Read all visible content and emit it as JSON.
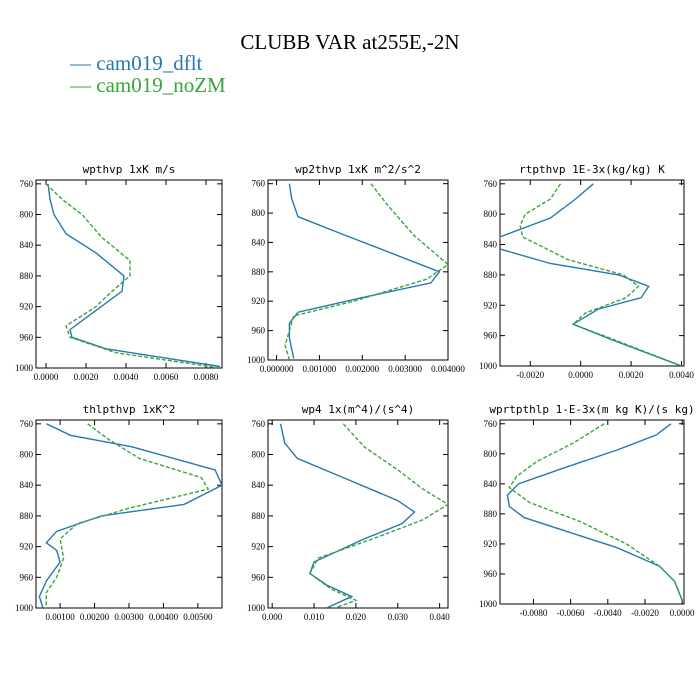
{
  "title": "CLUBB VAR at255E,-2N",
  "colors": {
    "dflt": "#2778b0",
    "noZM": "#3aa53a"
  },
  "legend": [
    {
      "name": "cam019_dflt",
      "color": "#2778b0",
      "dash": "solid"
    },
    {
      "name": "cam019_noZM",
      "color": "#3aa53a",
      "dash": "dashed"
    }
  ],
  "chart_data": [
    {
      "type": "line",
      "title": "wpthvp  1xK m/s",
      "xlim": [
        -0.0005,
        0.0088
      ],
      "xticks": [
        "0.0000",
        "0.0020",
        "0.0040",
        "0.0060",
        "0.0080"
      ],
      "xtick_values": [
        0.0,
        0.002,
        0.004,
        0.006,
        0.008
      ],
      "ylim": [
        1000,
        755
      ],
      "yticks": [
        "760",
        "800",
        "840",
        "880",
        "920",
        "960",
        "1000"
      ],
      "ytick_values": [
        760,
        800,
        840,
        880,
        920,
        960,
        1000
      ],
      "series": [
        {
          "name": "cam019_dflt",
          "style": "solid",
          "x": [
            0.0001,
            0.0002,
            0.0004,
            0.001,
            0.0025,
            0.0039,
            0.0038,
            0.0025,
            0.0012,
            0.0013,
            0.003,
            0.0087
          ],
          "y": [
            760,
            780,
            800,
            825,
            850,
            880,
            900,
            925,
            950,
            960,
            975,
            998
          ]
        },
        {
          "name": "cam019_noZM",
          "style": "dashed",
          "x": [
            0.0,
            0.0008,
            0.0018,
            0.0028,
            0.0042,
            0.0042,
            0.0033,
            0.0025,
            0.001,
            0.0012,
            0.0035,
            0.0087
          ],
          "y": [
            760,
            780,
            800,
            830,
            860,
            880,
            900,
            920,
            945,
            960,
            980,
            1000
          ]
        }
      ]
    },
    {
      "type": "line",
      "title": "wp2thvp  1xK m^2/s^2",
      "xlim": [
        -0.0002,
        0.004
      ],
      "xticks": [
        "0.000000",
        "0.001000",
        "0.002000",
        "0.003000",
        "0.004000"
      ],
      "xtick_values": [
        0.0,
        0.001,
        0.002,
        0.003,
        0.004
      ],
      "ylim": [
        1000,
        755
      ],
      "yticks": [
        "760",
        "800",
        "840",
        "880",
        "920",
        "960",
        "1000"
      ],
      "ytick_values": [
        760,
        800,
        840,
        880,
        920,
        960,
        1000
      ],
      "series": [
        {
          "name": "cam019_dflt",
          "style": "solid",
          "x": [
            0.0003,
            0.00035,
            0.0005,
            0.0015,
            0.0038,
            0.0036,
            0.002,
            0.0005,
            0.0003,
            0.0003,
            0.0004
          ],
          "y": [
            760,
            780,
            805,
            828,
            880,
            895,
            915,
            935,
            950,
            970,
            998
          ]
        },
        {
          "name": "cam019_noZM",
          "style": "dashed",
          "x": [
            0.0022,
            0.0026,
            0.0032,
            0.004,
            0.0035,
            0.0018,
            0.0004,
            0.0003,
            0.0002,
            0.0003
          ],
          "y": [
            760,
            790,
            830,
            870,
            890,
            920,
            940,
            960,
            980,
            1000
          ]
        }
      ]
    },
    {
      "type": "line",
      "title": "rtpthvp  1E-3x(kg/kg) K",
      "xlim": [
        -0.0032,
        0.0041
      ],
      "xticks": [
        "-0.0020",
        "0.0000",
        "0.0020",
        "0.0040"
      ],
      "xtick_values": [
        -0.002,
        0.0,
        0.002,
        0.004
      ],
      "ylim": [
        1000,
        755
      ],
      "yticks": [
        "760",
        "800",
        "840",
        "880",
        "920",
        "960",
        "1000"
      ],
      "ytick_values": [
        760,
        800,
        840,
        880,
        920,
        960,
        1000
      ],
      "series": [
        {
          "name": "cam019_dflt",
          "style": "solid",
          "x": [
            0.0005,
            -0.0002,
            -0.0012,
            -0.0032,
            -0.0033,
            -0.0012,
            0.0015,
            0.0027,
            0.0024,
            0.0007,
            -0.0003,
            0.0012,
            0.004
          ],
          "y": [
            760,
            780,
            805,
            830,
            845,
            865,
            880,
            895,
            910,
            925,
            945,
            965,
            1000
          ]
        },
        {
          "name": "cam019_noZM",
          "style": "dashed",
          "x": [
            -0.0008,
            -0.0012,
            -0.0022,
            -0.0024,
            -0.0023,
            -0.0005,
            0.0017,
            0.0023,
            0.0018,
            0.0002,
            -0.0003,
            0.0013,
            0.004
          ],
          "y": [
            760,
            780,
            800,
            815,
            830,
            860,
            880,
            895,
            910,
            930,
            945,
            965,
            1000
          ]
        }
      ]
    },
    {
      "type": "line",
      "title": "thlpthvp  1xK^2",
      "xlim": [
        0.0003,
        0.0057
      ],
      "xticks": [
        "0.00100",
        "0.00200",
        "0.00300",
        "0.00400",
        "0.00500"
      ],
      "xtick_values": [
        0.001,
        0.002,
        0.003,
        0.004,
        0.005
      ],
      "ylim": [
        1000,
        755
      ],
      "yticks": [
        "760",
        "800",
        "840",
        "880",
        "920",
        "960",
        "1000"
      ],
      "ytick_values": [
        760,
        800,
        840,
        880,
        920,
        960,
        1000
      ],
      "series": [
        {
          "name": "cam019_dflt",
          "style": "solid",
          "x": [
            0.0006,
            0.0013,
            0.0031,
            0.0055,
            0.0057,
            0.0046,
            0.0022,
            0.0009,
            0.0006,
            0.0009,
            0.001,
            0.0006,
            0.0004,
            0.0005
          ],
          "y": [
            760,
            775,
            790,
            820,
            840,
            865,
            880,
            900,
            915,
            925,
            940,
            965,
            985,
            1000
          ]
        },
        {
          "name": "cam019_noZM",
          "style": "dashed",
          "x": [
            0.0018,
            0.0024,
            0.0033,
            0.0051,
            0.0053,
            0.003,
            0.0015,
            0.001,
            0.0011,
            0.0009,
            0.0006,
            0.0006
          ],
          "y": [
            760,
            780,
            805,
            830,
            845,
            870,
            890,
            910,
            935,
            960,
            980,
            1000
          ]
        }
      ]
    },
    {
      "type": "line",
      "title": "wp4  1x(m^4)/(s^4)",
      "xlim": [
        -0.001,
        0.042
      ],
      "xticks": [
        "0.000",
        "0.010",
        "0.020",
        "0.030",
        "0.040"
      ],
      "xtick_values": [
        0.0,
        0.01,
        0.02,
        0.03,
        0.04
      ],
      "ylim": [
        1000,
        755
      ],
      "yticks": [
        "760",
        "800",
        "840",
        "880",
        "920",
        "960",
        "1000"
      ],
      "ytick_values": [
        760,
        800,
        840,
        880,
        920,
        960,
        1000
      ],
      "series": [
        {
          "name": "cam019_dflt",
          "style": "solid",
          "x": [
            0.002,
            0.003,
            0.006,
            0.017,
            0.03,
            0.034,
            0.031,
            0.022,
            0.01,
            0.009,
            0.013,
            0.019,
            0.013
          ],
          "y": [
            760,
            785,
            805,
            830,
            860,
            875,
            890,
            910,
            940,
            955,
            970,
            985,
            1000
          ]
        },
        {
          "name": "cam019_noZM",
          "style": "dashed",
          "x": [
            0.017,
            0.022,
            0.03,
            0.036,
            0.042,
            0.036,
            0.024,
            0.011,
            0.009,
            0.014,
            0.02,
            0.015
          ],
          "y": [
            760,
            790,
            820,
            845,
            865,
            885,
            910,
            935,
            955,
            975,
            990,
            1000
          ]
        }
      ]
    },
    {
      "type": "line",
      "title": "wprtpthlp  1-E-3x(m kg K)/(s kg)",
      "xlim": [
        -0.0098,
        0.0001
      ],
      "xticks": [
        "-0.0080",
        "-0.0060",
        "-0.0040",
        "-0.0020",
        "0.0000"
      ],
      "xtick_values": [
        -0.008,
        -0.006,
        -0.004,
        -0.002,
        0.0
      ],
      "ylim": [
        1000,
        755
      ],
      "yticks": [
        "760",
        "800",
        "840",
        "880",
        "920",
        "960",
        "1000"
      ],
      "ytick_values": [
        760,
        800,
        840,
        880,
        920,
        960,
        1000
      ],
      "series": [
        {
          "name": "cam019_dflt",
          "style": "solid",
          "x": [
            -0.0006,
            -0.0014,
            -0.0035,
            -0.0065,
            -0.0088,
            -0.0094,
            -0.0093,
            -0.0085,
            -0.006,
            -0.0035,
            -0.0012,
            -0.0004,
            0.0
          ],
          "y": [
            760,
            775,
            795,
            820,
            840,
            855,
            870,
            885,
            905,
            925,
            950,
            970,
            995
          ]
        },
        {
          "name": "cam019_noZM",
          "style": "dashed",
          "x": [
            -0.0042,
            -0.0058,
            -0.0078,
            -0.0089,
            -0.0093,
            -0.0082,
            -0.0055,
            -0.003,
            -0.0012,
            -0.0004,
            0.0
          ],
          "y": [
            760,
            785,
            810,
            830,
            845,
            865,
            890,
            920,
            950,
            970,
            995
          ]
        }
      ]
    }
  ]
}
